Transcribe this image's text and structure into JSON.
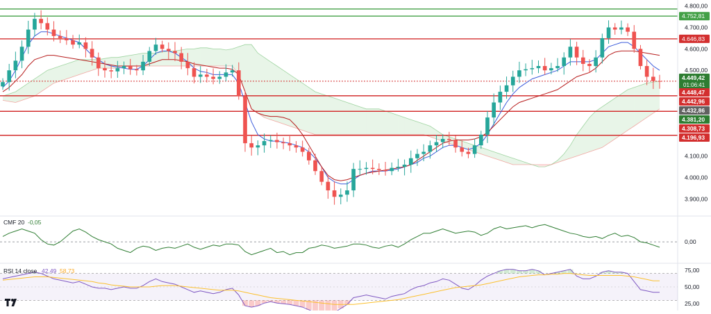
{
  "chart_data": [
    {
      "type": "candlestick",
      "title": "",
      "y_axis": {
        "ticks": [
          4800,
          4700,
          4600,
          4500,
          4100,
          4000,
          3900
        ],
        "tick_labels": [
          "4.800,00",
          "4.700,00",
          "4.600,00",
          "4.500,00",
          "4.100,00",
          "4.000,00",
          "3.900,00"
        ],
        "range": [
          3830,
          4815
        ]
      },
      "horizontal_levels": [
        {
          "value": 4786.0,
          "color": "#43a047",
          "label": ""
        },
        {
          "value": 4752.81,
          "color": "#43a047",
          "label": "4.752,81"
        },
        {
          "value": 4646.83,
          "color": "#d32f2f",
          "label": "4.646,83"
        },
        {
          "value": 4449.42,
          "color": "#d32f2f",
          "label": "4.449,42",
          "dashed": true
        },
        {
          "value": 4381.2,
          "color": "#d32f2f",
          "label": "4.381,20"
        },
        {
          "value": 4308.73,
          "color": "#d32f2f",
          "label": ""
        },
        {
          "value": 4196.93,
          "color": "#d32f2f",
          "label": "4.196,93"
        }
      ],
      "price_labels": [
        {
          "value": 4449.42,
          "text": "4.449,42",
          "sub": "01:06:41",
          "bg": "#2e7d32"
        },
        {
          "value": 4448.47,
          "text": "4.448,47",
          "bg": "#d32f2f"
        },
        {
          "value": 4442.96,
          "text": "4.442,96",
          "bg": "#d32f2f"
        },
        {
          "value": 4432.86,
          "text": "4.432,86",
          "bg": "#616161"
        },
        {
          "value": 4381.2,
          "text": "4.381,20",
          "bg": "#2e7d32"
        },
        {
          "value": 4308.73,
          "text": "4.308,73",
          "bg": "#d32f2f"
        },
        {
          "value": 4196.93,
          "text": "4.196,93",
          "bg": "#d32f2f"
        }
      ],
      "closes": [
        4445,
        4500,
        4545,
        4610,
        4690,
        4740,
        4720,
        4690,
        4660,
        4650,
        4640,
        4620,
        4630,
        4600,
        4560,
        4510,
        4500,
        4495,
        4510,
        4520,
        4505,
        4500,
        4540,
        4590,
        4620,
        4600,
        4590,
        4580,
        4540,
        4510,
        4470,
        4480,
        4470,
        4460,
        4470,
        4490,
        4500,
        4380,
        4160,
        4140,
        4150,
        4170,
        4175,
        4165,
        4160,
        4150,
        4140,
        4120,
        4080,
        4030,
        3980,
        3940,
        3910,
        3920,
        3940,
        4040,
        4040,
        4045,
        4040,
        4035,
        4030,
        4045,
        4050,
        4060,
        4090,
        4110,
        4120,
        4150,
        4165,
        4180,
        4175,
        4140,
        4120,
        4110,
        4150,
        4200,
        4280,
        4350,
        4400,
        4430,
        4470,
        4500,
        4505,
        4510,
        4520,
        4500,
        4510,
        4520,
        4560,
        4610,
        4560,
        4530,
        4520,
        4560,
        4650,
        4700,
        4690,
        4700,
        4680,
        4600,
        4520,
        4470,
        4450,
        4449
      ],
      "series": [
        {
          "name": "",
          "color": "#3b5bdb",
          "values": [
            4420,
            4450,
            4500,
            4560,
            4620,
            4660,
            4680,
            4680,
            4670,
            4660,
            4650,
            4640,
            4630,
            4600,
            4570,
            4550,
            4530,
            4520,
            4515,
            4510,
            4505,
            4505,
            4520,
            4550,
            4580,
            4590,
            4590,
            4580,
            4560,
            4540,
            4510,
            4495,
            4490,
            4480,
            4480,
            4480,
            4480,
            4440,
            4350,
            4260,
            4200,
            4180,
            4170,
            4170,
            4165,
            4160,
            4150,
            4140,
            4120,
            4090,
            4050,
            4000,
            3980,
            3970,
            3970,
            3990,
            4010,
            4020,
            4030,
            4030,
            4030,
            4035,
            4040,
            4050,
            4060,
            4070,
            4090,
            4100,
            4120,
            4140,
            4150,
            4150,
            4140,
            4130,
            4140,
            4160,
            4200,
            4250,
            4300,
            4350,
            4390,
            4420,
            4440,
            4460,
            4470,
            4480,
            4490,
            4500,
            4520,
            4540,
            4540,
            4540,
            4540,
            4550,
            4580,
            4610,
            4620,
            4630,
            4630,
            4610,
            4580,
            4550,
            4520,
            4500
          ]
        },
        {
          "name": "",
          "color": "#b71c1c",
          "values": [
            4400,
            4420,
            4450,
            4480,
            4520,
            4550,
            4560,
            4570,
            4570,
            4565,
            4560,
            4555,
            4550,
            4545,
            4540,
            4535,
            4530,
            4525,
            4520,
            4520,
            4520,
            4520,
            4520,
            4530,
            4540,
            4550,
            4550,
            4550,
            4545,
            4540,
            4530,
            4525,
            4520,
            4515,
            4510,
            4510,
            4505,
            4480,
            4400,
            4320,
            4300,
            4290,
            4285,
            4285,
            4280,
            4270,
            4240,
            4200,
            4150,
            4100,
            4050,
            4010,
            3990,
            3985,
            3990,
            4000,
            4010,
            4020,
            4025,
            4030,
            4035,
            4040,
            4045,
            4050,
            4060,
            4080,
            4100,
            4120,
            4140,
            4160,
            4170,
            4175,
            4175,
            4175,
            4180,
            4190,
            4210,
            4240,
            4270,
            4300,
            4330,
            4350,
            4360,
            4370,
            4380,
            4390,
            4400,
            4410,
            4430,
            4450,
            4470,
            4480,
            4490,
            4510,
            4540,
            4570,
            4585,
            4590,
            4590,
            4590,
            4585,
            4580,
            4575,
            4570
          ]
        }
      ],
      "cloud_top": [
        4380,
        4390,
        4400,
        4420,
        4440,
        4460,
        4480,
        4500,
        4510,
        4520,
        4530,
        4540,
        4550,
        4550,
        4550,
        4550,
        4555,
        4560,
        4560,
        4565,
        4570,
        4575,
        4580,
        4580,
        4580,
        4585,
        4590,
        4590,
        4595,
        4600,
        4600,
        4605,
        4605,
        4600,
        4600,
        4595,
        4600,
        4610,
        4620,
        4620,
        4580,
        4560,
        4540,
        4520,
        4500,
        4480,
        4460,
        4440,
        4420,
        4400,
        4390,
        4380,
        4370,
        4360,
        4350,
        4340,
        4330,
        4320,
        4320,
        4320,
        4310,
        4300,
        4290,
        4280,
        4270,
        4260,
        4250,
        4240,
        4220,
        4200,
        4190,
        4180,
        4170,
        4160,
        4150,
        4140,
        4130,
        4120,
        4110,
        4100,
        4090,
        4080,
        4070,
        4060,
        4050,
        4050,
        4060,
        4080,
        4110,
        4150,
        4200,
        4240,
        4280,
        4310,
        4330,
        4350,
        4370,
        4390,
        4410,
        4420,
        4430,
        4440,
        4445,
        4450
      ],
      "cloud_bottom": [
        4360,
        4355,
        4350,
        4360,
        4370,
        4380,
        4400,
        4420,
        4440,
        4450,
        4460,
        4470,
        4480,
        4490,
        4500,
        4510,
        4510,
        4510,
        4510,
        4515,
        4520,
        4520,
        4520,
        4520,
        4520,
        4520,
        4520,
        4520,
        4520,
        4520,
        4520,
        4520,
        4520,
        4520,
        4520,
        4520,
        4520,
        4480,
        4400,
        4320,
        4300,
        4280,
        4270,
        4260,
        4250,
        4240,
        4230,
        4220,
        4210,
        4200,
        4200,
        4200,
        4200,
        4200,
        4200,
        4200,
        4200,
        4200,
        4200,
        4200,
        4200,
        4200,
        4200,
        4200,
        4200,
        4200,
        4200,
        4190,
        4180,
        4170,
        4160,
        4150,
        4140,
        4130,
        4120,
        4110,
        4100,
        4090,
        4080,
        4070,
        4060,
        4060,
        4060,
        4060,
        4060,
        4060,
        4060,
        4070,
        4080,
        4090,
        4100,
        4110,
        4120,
        4130,
        4140,
        4160,
        4180,
        4200,
        4220,
        4240,
        4260,
        4280,
        4300,
        4320
      ]
    },
    {
      "type": "line",
      "title": "CMF 20",
      "legend": [
        "CMF 20",
        "-0,05"
      ],
      "y_axis": {
        "ticks": [
          0
        ],
        "tick_labels": [
          "0,00"
        ],
        "range": [
          -0.18,
          0.22
        ]
      },
      "zero_line": true,
      "series": [
        {
          "name": "CMF 20",
          "color": "#2e7d32",
          "values": [
            0.05,
            0.08,
            0.1,
            0.12,
            0.1,
            0.08,
            0.02,
            -0.02,
            -0.03,
            0.0,
            0.05,
            0.1,
            0.12,
            0.09,
            0.05,
            0.02,
            0.0,
            -0.02,
            -0.06,
            -0.08,
            -0.1,
            -0.06,
            -0.04,
            -0.05,
            -0.08,
            -0.06,
            -0.05,
            -0.06,
            -0.04,
            -0.02,
            -0.05,
            -0.07,
            -0.05,
            -0.03,
            -0.04,
            -0.02,
            -0.02,
            -0.03,
            -0.09,
            -0.12,
            -0.1,
            -0.08,
            -0.06,
            -0.1,
            -0.09,
            -0.12,
            -0.1,
            -0.1,
            -0.06,
            -0.05,
            -0.03,
            -0.04,
            -0.06,
            -0.05,
            -0.04,
            -0.02,
            -0.02,
            -0.03,
            -0.05,
            -0.06,
            -0.04,
            -0.03,
            -0.05,
            -0.02,
            0.02,
            0.05,
            0.08,
            0.08,
            0.1,
            0.12,
            0.1,
            0.08,
            0.09,
            0.1,
            0.09,
            0.06,
            0.08,
            0.12,
            0.14,
            0.12,
            0.13,
            0.14,
            0.15,
            0.13,
            0.15,
            0.16,
            0.14,
            0.12,
            0.1,
            0.08,
            0.07,
            0.05,
            0.04,
            0.05,
            0.03,
            0.06,
            0.08,
            0.05,
            0.06,
            0.04,
            0.0,
            -0.01,
            -0.03,
            -0.05
          ]
        }
      ]
    },
    {
      "type": "line",
      "title": "RSI 14 close",
      "legend": [
        "RSI 14 close",
        "42,49",
        "58,73"
      ],
      "y_axis": {
        "ticks": [
          75,
          50,
          25
        ],
        "tick_labels": [
          "75,00",
          "50,00",
          "25,00"
        ],
        "range": [
          18,
          82
        ]
      },
      "bands": [
        70,
        30
      ],
      "series": [
        {
          "name": "RSI",
          "color": "#7e57c2",
          "values": [
            62,
            64,
            66,
            68,
            70,
            72,
            70,
            66,
            62,
            60,
            58,
            56,
            58,
            54,
            50,
            48,
            48,
            46,
            48,
            50,
            48,
            48,
            52,
            58,
            62,
            58,
            56,
            54,
            50,
            46,
            42,
            44,
            42,
            40,
            42,
            46,
            48,
            38,
            22,
            20,
            22,
            26,
            28,
            26,
            25,
            24,
            22,
            20,
            16,
            12,
            10,
            8,
            12,
            18,
            24,
            34,
            36,
            38,
            36,
            34,
            32,
            36,
            38,
            40,
            46,
            50,
            52,
            56,
            58,
            62,
            60,
            54,
            48,
            46,
            52,
            60,
            66,
            70,
            74,
            76,
            76,
            74,
            74,
            76,
            74,
            68,
            70,
            72,
            74,
            76,
            66,
            62,
            62,
            66,
            72,
            74,
            72,
            72,
            70,
            58,
            46,
            44,
            42,
            42
          ]
        },
        {
          "name": "RSI MA",
          "color": "#fbc02d",
          "values": [
            60,
            61,
            62,
            63,
            64,
            65,
            65,
            65,
            64,
            63,
            62,
            61,
            60,
            59,
            58,
            56,
            55,
            53,
            52,
            51,
            50,
            50,
            50,
            50,
            51,
            52,
            52,
            52,
            51,
            50,
            49,
            48,
            47,
            46,
            45,
            45,
            45,
            44,
            42,
            40,
            38,
            36,
            34,
            33,
            32,
            31,
            30,
            29,
            28,
            27,
            26,
            25,
            24,
            24,
            24,
            24,
            25,
            26,
            27,
            28,
            29,
            30,
            31,
            33,
            35,
            37,
            39,
            41,
            43,
            45,
            47,
            49,
            50,
            51,
            52,
            53,
            55,
            57,
            59,
            61,
            63,
            65,
            66,
            67,
            68,
            68,
            69,
            69,
            70,
            70,
            69,
            68,
            67,
            67,
            67,
            67,
            67,
            67,
            66,
            65,
            63,
            61,
            59,
            59
          ]
        }
      ]
    }
  ]
}
